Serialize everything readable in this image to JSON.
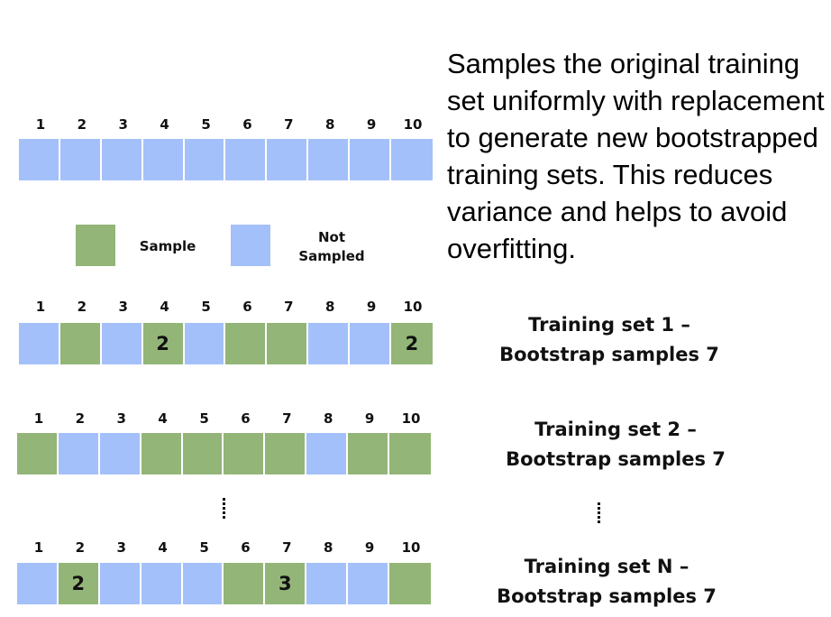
{
  "colors": {
    "sample": "#93b577",
    "not_sampled": "#a4c0fa"
  },
  "description": "Samples the original training set uniformly with replacement to generate new bootstrapped training sets. This reduces variance and helps to avoid overfitting.",
  "legend": {
    "sample_label": "Sample",
    "not_sampled_label_line1": "Not",
    "not_sampled_label_line2": "Sampled"
  },
  "indices": [
    "1",
    "2",
    "3",
    "4",
    "5",
    "6",
    "7",
    "8",
    "9",
    "10"
  ],
  "rows": [
    {
      "id": "original",
      "cells": [
        "N",
        "N",
        "N",
        "N",
        "N",
        "N",
        "N",
        "N",
        "N",
        "N"
      ],
      "counts": [
        "",
        "",
        "",
        "",
        "",
        "",
        "",
        "",
        "",
        ""
      ]
    },
    {
      "id": "set1",
      "cells": [
        "N",
        "S",
        "N",
        "S",
        "N",
        "S",
        "S",
        "N",
        "N",
        "S"
      ],
      "counts": [
        "",
        "",
        "",
        "2",
        "",
        "",
        "",
        "",
        "",
        "2"
      ],
      "caption_line1": "Training set 1 –",
      "caption_line2": "Bootstrap samples 7"
    },
    {
      "id": "set2",
      "cells": [
        "S",
        "N",
        "N",
        "S",
        "S",
        "S",
        "S",
        "N",
        "S",
        "S"
      ],
      "counts": [
        "",
        "",
        "",
        "",
        "",
        "",
        "",
        "",
        "",
        ""
      ],
      "caption_line1": "Training set 2 –",
      "caption_line2": "Bootstrap samples 7"
    },
    {
      "id": "setN",
      "cells": [
        "N",
        "S",
        "N",
        "N",
        "N",
        "S",
        "S",
        "N",
        "N",
        "S"
      ],
      "counts": [
        "",
        "2",
        "",
        "",
        "",
        "",
        "3",
        "",
        "",
        ""
      ],
      "caption_line1": "Training set N –",
      "caption_line2": "Bootstrap samples 7"
    }
  ]
}
